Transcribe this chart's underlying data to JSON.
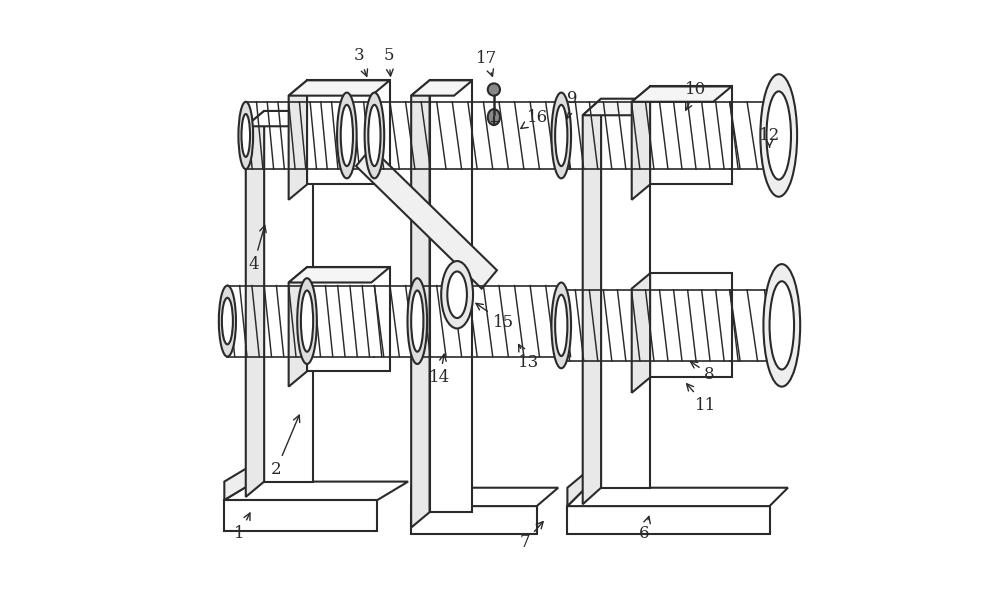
{
  "figure_width": 10.0,
  "figure_height": 6.14,
  "dpi": 100,
  "bg_color": "#ffffff",
  "line_color": "#2a2a2a",
  "line_width": 1.5,
  "labels": {
    "1": {
      "text": [
        0.075,
        0.13
      ],
      "arrow": [
        0.095,
        0.17
      ]
    },
    "2": {
      "text": [
        0.135,
        0.235
      ],
      "arrow": [
        0.175,
        0.33
      ]
    },
    "3": {
      "text": [
        0.27,
        0.91
      ],
      "arrow": [
        0.285,
        0.87
      ]
    },
    "4": {
      "text": [
        0.098,
        0.57
      ],
      "arrow": [
        0.118,
        0.64
      ]
    },
    "5": {
      "text": [
        0.318,
        0.91
      ],
      "arrow": [
        0.322,
        0.87
      ]
    },
    "6": {
      "text": [
        0.735,
        0.13
      ],
      "arrow": [
        0.745,
        0.165
      ]
    },
    "7": {
      "text": [
        0.54,
        0.115
      ],
      "arrow": [
        0.575,
        0.155
      ]
    },
    "8": {
      "text": [
        0.842,
        0.39
      ],
      "arrow": [
        0.805,
        0.415
      ]
    },
    "9": {
      "text": [
        0.618,
        0.84
      ],
      "arrow": [
        0.607,
        0.8
      ]
    },
    "10": {
      "text": [
        0.82,
        0.855
      ],
      "arrow": [
        0.8,
        0.815
      ]
    },
    "11": {
      "text": [
        0.835,
        0.34
      ],
      "arrow": [
        0.8,
        0.38
      ]
    },
    "12": {
      "text": [
        0.94,
        0.78
      ],
      "arrow": [
        0.94,
        0.76
      ]
    },
    "13": {
      "text": [
        0.546,
        0.41
      ],
      "arrow": [
        0.527,
        0.445
      ]
    },
    "14": {
      "text": [
        0.402,
        0.385
      ],
      "arrow": [
        0.41,
        0.43
      ]
    },
    "15": {
      "text": [
        0.505,
        0.475
      ],
      "arrow": [
        0.455,
        0.51
      ]
    },
    "16": {
      "text": [
        0.561,
        0.81
      ],
      "arrow": [
        0.532,
        0.79
      ]
    },
    "17": {
      "text": [
        0.478,
        0.905
      ],
      "arrow": [
        0.49,
        0.87
      ]
    }
  }
}
